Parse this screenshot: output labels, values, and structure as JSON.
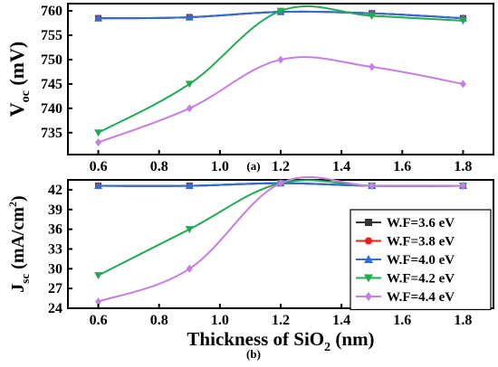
{
  "chart_data": [
    {
      "type": "line",
      "panel_label": "(a)",
      "ylabel_main": "V",
      "ylabel_sub": "oc",
      "ylabel_unit": " (mV)",
      "xlabel": "",
      "x": [
        0.6,
        0.9,
        1.2,
        1.5,
        1.8
      ],
      "xticks": [
        "0.6",
        "0.8",
        "1.0",
        "1.2",
        "1.4",
        "1.6",
        "1.8"
      ],
      "xtick_values": [
        0.6,
        0.8,
        1.0,
        1.2,
        1.4,
        1.6,
        1.8
      ],
      "yticks": [
        "735",
        "740",
        "745",
        "750",
        "755",
        "760"
      ],
      "ytick_values": [
        735,
        740,
        745,
        750,
        755,
        760
      ],
      "xlim": [
        0.5,
        1.9
      ],
      "ylim": [
        730.5,
        761.5
      ],
      "series": [
        {
          "name": "W.F=3.6 eV",
          "color": "#333333",
          "marker": "square",
          "values": [
            758.5,
            758.7,
            759.8,
            759.5,
            758.5
          ]
        },
        {
          "name": "W.F=3.8 eV",
          "color": "#ee1c1c",
          "marker": "circle",
          "values": [
            758.5,
            758.7,
            759.8,
            759.5,
            758.5
          ]
        },
        {
          "name": "W.F=4.0 eV",
          "color": "#2c6fd6",
          "marker": "triangle-up",
          "values": [
            758.5,
            758.7,
            759.8,
            759.5,
            758.5
          ]
        },
        {
          "name": "W.F=4.2 eV",
          "color": "#22aa55",
          "marker": "triangle-down",
          "values": [
            735.0,
            745.0,
            760.0,
            759.0,
            758.0
          ]
        },
        {
          "name": "W.F=4.4 eV",
          "color": "#c77de3",
          "marker": "diamond",
          "values": [
            733.0,
            740.0,
            750.0,
            748.5,
            745.0
          ]
        }
      ]
    },
    {
      "type": "line",
      "panel_label": "(b)",
      "ylabel_main": "J",
      "ylabel_sub": "sc",
      "ylabel_unit": " (mA/cm",
      "ylabel_sup": "2",
      "ylabel_close": ")",
      "xlabel_main": "Thickness of SiO",
      "xlabel_sub": "2",
      "xlabel_unit": " (nm)",
      "x": [
        0.6,
        0.9,
        1.2,
        1.5,
        1.8
      ],
      "xticks": [
        "0.6",
        "0.8",
        "1.0",
        "1.2",
        "1.4",
        "1.6",
        "1.8"
      ],
      "xtick_values": [
        0.6,
        0.8,
        1.0,
        1.2,
        1.4,
        1.6,
        1.8
      ],
      "yticks": [
        "24",
        "27",
        "30",
        "33",
        "36",
        "39",
        "42"
      ],
      "ytick_values": [
        24,
        27,
        30,
        33,
        36,
        39,
        42
      ],
      "xlim": [
        0.5,
        1.9
      ],
      "ylim": [
        24.0,
        43.5
      ],
      "legend_position": "bottom-right",
      "series": [
        {
          "name": "W.F=3.6 eV",
          "color": "#333333",
          "marker": "square",
          "values": [
            42.6,
            42.6,
            43.0,
            42.6,
            42.6
          ]
        },
        {
          "name": "W.F=3.8 eV",
          "color": "#ee1c1c",
          "marker": "circle",
          "values": [
            42.6,
            42.6,
            43.0,
            42.6,
            42.6
          ]
        },
        {
          "name": "W.F=4.0 eV",
          "color": "#2c6fd6",
          "marker": "triangle-up",
          "values": [
            42.6,
            42.6,
            43.0,
            42.6,
            42.6
          ]
        },
        {
          "name": "W.F=4.2 eV",
          "color": "#22aa55",
          "marker": "triangle-down",
          "values": [
            29.0,
            36.0,
            43.0,
            42.6,
            42.6
          ]
        },
        {
          "name": "W.F=4.4 eV",
          "color": "#c77de3",
          "marker": "diamond",
          "values": [
            25.0,
            30.0,
            43.0,
            42.6,
            42.6
          ]
        }
      ]
    }
  ]
}
